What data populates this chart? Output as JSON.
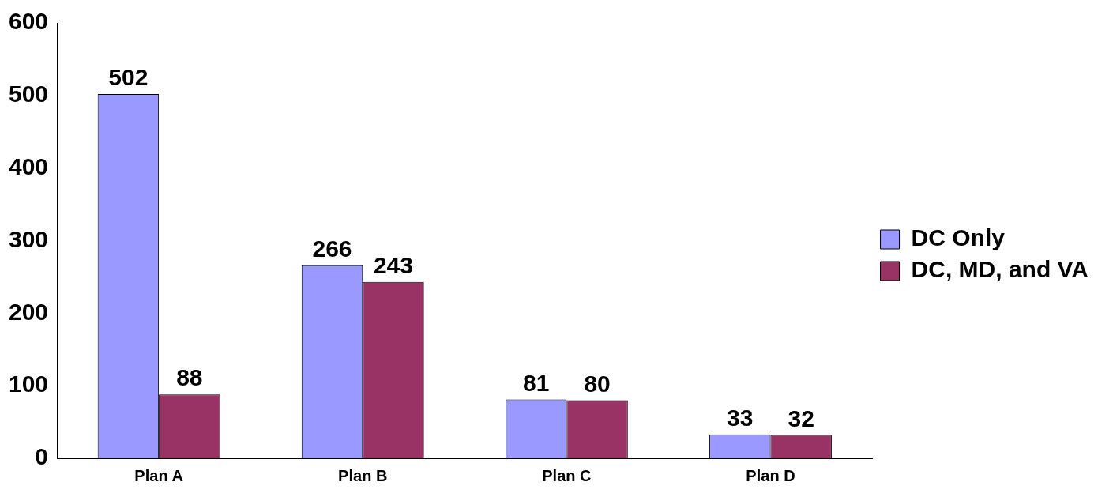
{
  "chart_data": {
    "type": "bar",
    "categories": [
      "Plan A",
      "Plan B",
      "Plan C",
      "Plan D"
    ],
    "series": [
      {
        "name": "DC Only",
        "color": "#9999ff",
        "values": [
          502,
          266,
          81,
          33
        ]
      },
      {
        "name": "DC, MD, and VA",
        "color": "#993366",
        "values": [
          88,
          243,
          80,
          32
        ]
      }
    ],
    "ylim": [
      0,
      600
    ],
    "yticks": [
      0,
      100,
      200,
      300,
      400,
      500,
      600
    ],
    "grid": false,
    "legend": "right",
    "data_labels": true
  }
}
